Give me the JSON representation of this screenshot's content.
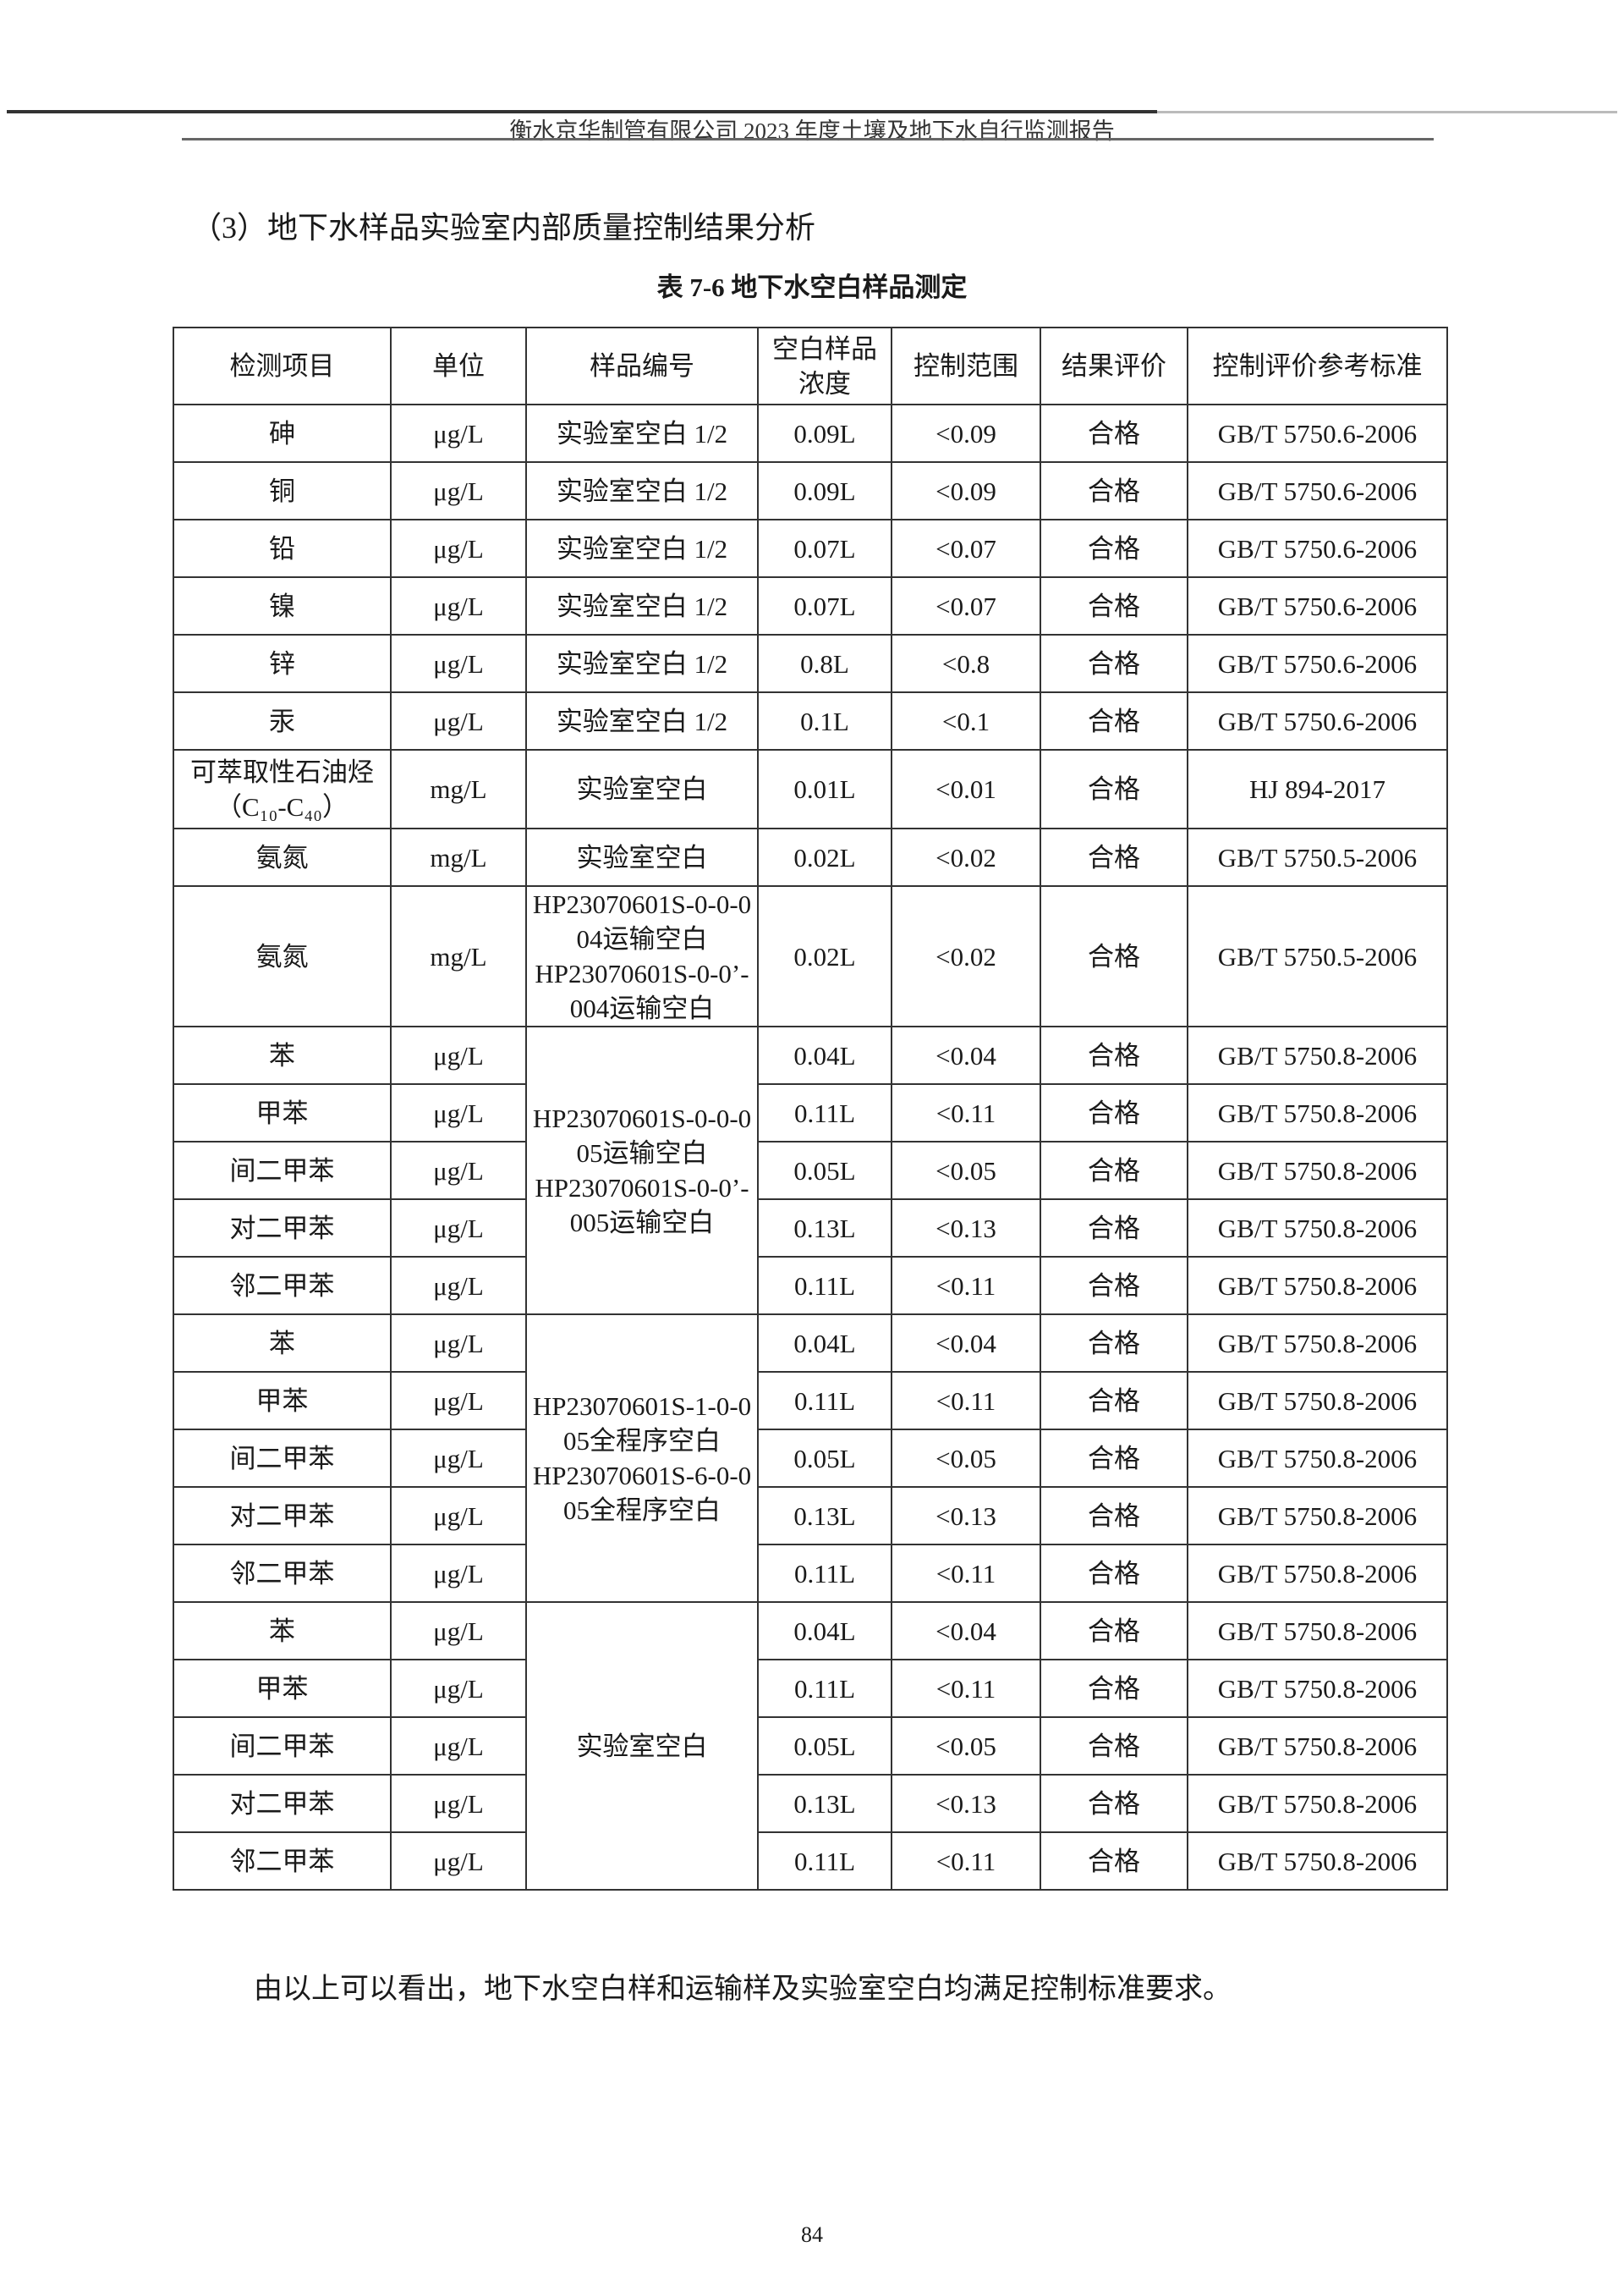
{
  "header": {
    "title": "衡水京华制管有限公司 2023 年度土壤及地下水自行监测报告"
  },
  "section_heading": "（3）地下水样品实验室内部质量控制结果分析",
  "table_caption": "表 7-6 地下水空白样品测定",
  "table": {
    "columns": [
      "检测项目",
      "单位",
      "样品编号",
      "空白样品浓度",
      "控制范围",
      "结果评价",
      "控制评价参考标准"
    ],
    "rows": [
      {
        "item": "砷",
        "unit": "μg/L",
        "sample": "实验室空白 1/2",
        "conc": "0.09L",
        "range": "<0.09",
        "result": "合格",
        "standard": "GB/T 5750.6-2006"
      },
      {
        "item": "铜",
        "unit": "μg/L",
        "sample": "实验室空白 1/2",
        "conc": "0.09L",
        "range": "<0.09",
        "result": "合格",
        "standard": "GB/T 5750.6-2006"
      },
      {
        "item": "铅",
        "unit": "μg/L",
        "sample": "实验室空白 1/2",
        "conc": "0.07L",
        "range": "<0.07",
        "result": "合格",
        "standard": "GB/T 5750.6-2006"
      },
      {
        "item": "镍",
        "unit": "μg/L",
        "sample": "实验室空白 1/2",
        "conc": "0.07L",
        "range": "<0.07",
        "result": "合格",
        "standard": "GB/T 5750.6-2006"
      },
      {
        "item": "锌",
        "unit": "μg/L",
        "sample": "实验室空白 1/2",
        "conc": "0.8L",
        "range": "<0.8",
        "result": "合格",
        "standard": "GB/T 5750.6-2006"
      },
      {
        "item": "汞",
        "unit": "μg/L",
        "sample": "实验室空白 1/2",
        "conc": "0.1L",
        "range": "<0.1",
        "result": "合格",
        "standard": "GB/T 5750.6-2006"
      },
      {
        "item": "可萃取性石油烃（C₁₀-C₄₀）",
        "unit": "mg/L",
        "sample": "实验室空白",
        "conc": "0.01L",
        "range": "<0.01",
        "result": "合格",
        "standard": "HJ 894-2017"
      },
      {
        "item": "氨氮",
        "unit": "mg/L",
        "sample": "实验室空白",
        "conc": "0.02L",
        "range": "<0.02",
        "result": "合格",
        "standard": "GB/T 5750.5-2006"
      },
      {
        "item": "氨氮",
        "unit": "mg/L",
        "sample": "HP23070601S-0-0-004运输空白\nHP23070601S-0-0’-004运输空白",
        "conc": "0.02L",
        "range": "<0.02",
        "result": "合格",
        "standard": "GB/T 5750.5-2006"
      },
      {
        "item": "苯",
        "unit": "μg/L",
        "sample": "HP23070601S-0-0-005运输空白\nHP23070601S-0-0’-005运输空白",
        "span": 5,
        "conc": "0.04L",
        "range": "<0.04",
        "result": "合格",
        "standard": "GB/T 5750.8-2006"
      },
      {
        "item": "甲苯",
        "unit": "μg/L",
        "conc": "0.11L",
        "range": "<0.11",
        "result": "合格",
        "standard": "GB/T 5750.8-2006"
      },
      {
        "item": "间二甲苯",
        "unit": "μg/L",
        "conc": "0.05L",
        "range": "<0.05",
        "result": "合格",
        "standard": "GB/T 5750.8-2006"
      },
      {
        "item": "对二甲苯",
        "unit": "μg/L",
        "conc": "0.13L",
        "range": "<0.13",
        "result": "合格",
        "standard": "GB/T 5750.8-2006"
      },
      {
        "item": "邻二甲苯",
        "unit": "μg/L",
        "conc": "0.11L",
        "range": "<0.11",
        "result": "合格",
        "standard": "GB/T 5750.8-2006"
      },
      {
        "item": "苯",
        "unit": "μg/L",
        "sample": "HP23070601S-1-0-005全程序空白\nHP23070601S-6-0-005全程序空白",
        "span": 5,
        "conc": "0.04L",
        "range": "<0.04",
        "result": "合格",
        "standard": "GB/T 5750.8-2006"
      },
      {
        "item": "甲苯",
        "unit": "μg/L",
        "conc": "0.11L",
        "range": "<0.11",
        "result": "合格",
        "standard": "GB/T 5750.8-2006"
      },
      {
        "item": "间二甲苯",
        "unit": "μg/L",
        "conc": "0.05L",
        "range": "<0.05",
        "result": "合格",
        "standard": "GB/T 5750.8-2006"
      },
      {
        "item": "对二甲苯",
        "unit": "μg/L",
        "conc": "0.13L",
        "range": "<0.13",
        "result": "合格",
        "standard": "GB/T 5750.8-2006"
      },
      {
        "item": "邻二甲苯",
        "unit": "μg/L",
        "conc": "0.11L",
        "range": "<0.11",
        "result": "合格",
        "standard": "GB/T 5750.8-2006"
      },
      {
        "item": "苯",
        "unit": "μg/L",
        "sample": "实验室空白",
        "span": 5,
        "conc": "0.04L",
        "range": "<0.04",
        "result": "合格",
        "standard": "GB/T 5750.8-2006"
      },
      {
        "item": "甲苯",
        "unit": "μg/L",
        "conc": "0.11L",
        "range": "<0.11",
        "result": "合格",
        "standard": "GB/T 5750.8-2006"
      },
      {
        "item": "间二甲苯",
        "unit": "μg/L",
        "conc": "0.05L",
        "range": "<0.05",
        "result": "合格",
        "standard": "GB/T 5750.8-2006"
      },
      {
        "item": "对二甲苯",
        "unit": "μg/L",
        "conc": "0.13L",
        "range": "<0.13",
        "result": "合格",
        "standard": "GB/T 5750.8-2006"
      },
      {
        "item": "邻二甲苯",
        "unit": "μg/L",
        "conc": "0.11L",
        "range": "<0.11",
        "result": "合格",
        "standard": "GB/T 5750.8-2006"
      }
    ]
  },
  "conclusion": "由以上可以看出，地下水空白样和运输样及实验室空白均满足控制标准要求。",
  "page_number": "84"
}
